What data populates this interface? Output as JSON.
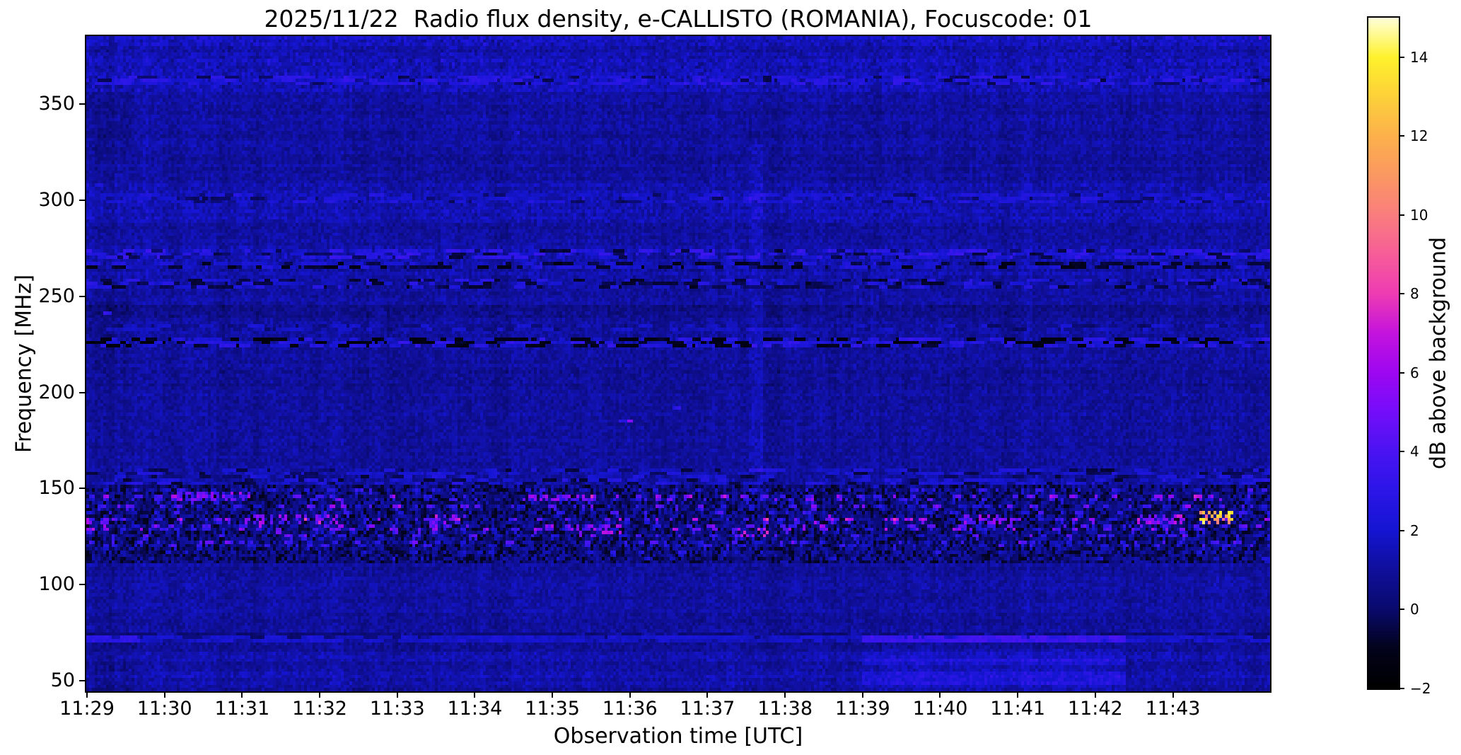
{
  "chart_data": {
    "type": "heatmap",
    "title": "2025/11/22  Radio flux density, e-CALLISTO (ROMANIA), Focuscode: 01",
    "xlabel": "Observation time [UTC]",
    "ylabel": "Frequency [MHz]",
    "x_ticks": [
      "11:29",
      "11:30",
      "11:31",
      "11:32",
      "11:33",
      "11:34",
      "11:35",
      "11:36",
      "11:37",
      "11:38",
      "11:39",
      "11:40",
      "11:41",
      "11:42",
      "11:43"
    ],
    "y_tick_labels": [
      "350",
      "300",
      "250",
      "200",
      "150",
      "100",
      "50"
    ],
    "y_tick_values": [
      350,
      300,
      250,
      200,
      150,
      100,
      50
    ],
    "freq_range_mhz": [
      44.5,
      385.4
    ],
    "time_start_utc": "11:29",
    "duration_min": 15.26,
    "grid": false,
    "colorbar": {
      "label": "dB above background",
      "tick_labels": [
        "14",
        "12",
        "10",
        "8",
        "6",
        "4",
        "2",
        "0",
        "−2"
      ],
      "tick_values": [
        14,
        12,
        10,
        8,
        6,
        4,
        2,
        0,
        -2
      ],
      "vmin": -2,
      "vmax": 15,
      "colormap": "gnuplot2",
      "stops": [
        [
          0.0,
          "000000"
        ],
        [
          0.06,
          "03031c"
        ],
        [
          0.118,
          "0a0a6e"
        ],
        [
          0.18,
          "10109e"
        ],
        [
          0.235,
          "1515d2"
        ],
        [
          0.3,
          "2e16e9"
        ],
        [
          0.353,
          "4a14f2"
        ],
        [
          0.42,
          "7a0dfa"
        ],
        [
          0.47,
          "9d07f1"
        ],
        [
          0.53,
          "c414dd"
        ],
        [
          0.588,
          "ee3cb4"
        ],
        [
          0.65,
          "f75f97"
        ],
        [
          0.706,
          "fa7e7e"
        ],
        [
          0.77,
          "fb9a60"
        ],
        [
          0.824,
          "fcb14c"
        ],
        [
          0.882,
          "fdd03a"
        ],
        [
          0.941,
          "fef22c"
        ],
        [
          1.0,
          "ffffd8"
        ]
      ]
    },
    "render_seed": 20251122,
    "background_level_db": 1.05,
    "features": [
      {
        "kind": "hglow",
        "f": [
          373,
          385.4
        ],
        "dv": 0.25,
        "noise": 0.55
      },
      {
        "kind": "hglow",
        "f": [
          382.5,
          385.4
        ],
        "dv": 0.45,
        "noise": 0.8
      },
      {
        "kind": "topdots",
        "f": [
          382,
          385.4
        ],
        "p": 0.012,
        "v": [
          4.5,
          9
        ]
      },
      {
        "kind": "hglow",
        "f": [
          358,
          373
        ],
        "dv": 0.5,
        "noise": 1.0
      },
      {
        "kind": "dashes",
        "f": [
          362,
          364.5
        ],
        "bright": {
          "p": 0.45,
          "v": 2.5,
          "s": 0.7
        },
        "dark": {
          "p": 0.12,
          "v": -0.2,
          "s": 0.3
        }
      },
      {
        "kind": "hglow",
        "f": [
          290,
          308
        ],
        "dv": 0.3,
        "noise": 0.6
      },
      {
        "kind": "dashes",
        "f": [
          301,
          303.2
        ],
        "bright": {
          "p": 0.35,
          "v": 2.2,
          "s": 0.5
        },
        "dark": {
          "p": 0.1,
          "v": 0,
          "s": 0.3
        }
      },
      {
        "kind": "hglow",
        "f": [
          263,
          277
        ],
        "dv": 0.2,
        "noise": 0.5
      },
      {
        "kind": "dashes",
        "f": [
          271.5,
          274.5
        ],
        "bright": {
          "p": 0.5,
          "v": 2.7,
          "s": 0.8
        },
        "dark": {
          "p": 0.15,
          "v": -0.3,
          "s": 0.4
        }
      },
      {
        "kind": "dashes",
        "f": [
          265.5,
          268
        ],
        "bright": {
          "p": 0.3,
          "v": 2.0,
          "s": 0.6
        },
        "dark": {
          "p": 0.3,
          "v": -0.8,
          "s": 0.5
        }
      },
      {
        "kind": "dashes",
        "f": [
          256,
          258.5
        ],
        "bright": {
          "p": 0.3,
          "v": 2.2,
          "s": 0.7
        },
        "dark": {
          "p": 0.25,
          "v": -0.5,
          "s": 0.4
        }
      },
      {
        "kind": "hglow",
        "f": [
          241,
          246
        ],
        "dv": -0.4,
        "noise": 0.4
      },
      {
        "kind": "dashes",
        "f": [
          233,
          235
        ],
        "bright": {
          "p": 0.25,
          "v": 1.8,
          "s": 0.4
        },
        "dark": {
          "p": 0.1,
          "v": 0.1,
          "s": 0.2
        }
      },
      {
        "kind": "dashes",
        "f": [
          226,
          228.5
        ],
        "bright": {
          "p": 0.4,
          "v": 2.4,
          "s": 0.8
        },
        "dark": {
          "p": 0.3,
          "v": -1.2,
          "s": 0.5
        }
      },
      {
        "kind": "hglow",
        "f": [
          204,
          212
        ],
        "dv": -0.2,
        "noise": 0.3
      },
      {
        "kind": "dashes",
        "f": [
          157.5,
          160
        ],
        "bright": {
          "p": 0.3,
          "v": 2.0,
          "s": 0.6
        },
        "dark": {
          "p": 0.15,
          "v": -0.3,
          "s": 0.4
        }
      },
      {
        "kind": "dashes",
        "f": [
          152.5,
          155.5
        ],
        "bright": {
          "p": 0.35,
          "v": 2.2,
          "s": 0.6
        },
        "dark": {
          "p": 0.15,
          "v": -0.4,
          "s": 0.4
        }
      },
      {
        "kind": "rfi",
        "f": [
          113,
          151.5
        ],
        "base": [
          -1.1,
          1.5
        ],
        "lines": [
          {
            "f": 150.5,
            "fw": 1.2,
            "p": 0.15,
            "v": [
              1.5,
              3.5
            ]
          },
          {
            "f": 147.0,
            "fw": 1.5,
            "p": 0.2,
            "v": [
              2.5,
              6.5
            ]
          },
          {
            "f": 144.5,
            "fw": 1.2,
            "p": 0.13,
            "v": [
              2,
              5
            ]
          },
          {
            "f": 141.0,
            "fw": 1.6,
            "p": 0.24,
            "v": [
              1.8,
              5.5
            ]
          },
          {
            "f": 138.0,
            "fw": 1.2,
            "p": 0.11,
            "v": [
              1.5,
              4
            ]
          },
          {
            "f": 134.8,
            "fw": 1.8,
            "p": 0.28,
            "v": [
              2.2,
              7
            ]
          },
          {
            "f": 131.5,
            "fw": 1.4,
            "p": 0.18,
            "v": [
              1.8,
              5.5
            ]
          },
          {
            "f": 129.0,
            "fw": 1.6,
            "p": 0.26,
            "v": [
              2,
              6
            ]
          },
          {
            "f": 126.0,
            "fw": 1.4,
            "p": 0.16,
            "v": [
              1.5,
              4.5
            ]
          },
          {
            "f": 123.5,
            "fw": 1.4,
            "p": 0.2,
            "v": [
              1.5,
              4.5
            ]
          },
          {
            "f": 120.5,
            "fw": 1.6,
            "p": 0.22,
            "v": [
              1.2,
              3.8
            ]
          },
          {
            "f": 117.5,
            "fw": 1.2,
            "p": 0.12,
            "v": [
              1,
              3
            ]
          },
          {
            "f": 114.5,
            "fw": 1.2,
            "p": 0.1,
            "v": [
              0.8,
              2.5
            ]
          }
        ],
        "clusters": [
          {
            "t": [
              14.35,
              14.75
            ],
            "f": [
              132.5,
              137.5
            ],
            "p": 0.55,
            "v": [
              8,
              14.5
            ]
          },
          {
            "t": [
              13.55,
              14.1
            ],
            "f": [
              133.5,
              136.5
            ],
            "p": 0.5,
            "v": [
              4,
              8
            ]
          },
          {
            "t": [
              1.1,
              2.1
            ],
            "f": [
              145.5,
              147.8
            ],
            "p": 0.5,
            "v": [
              3,
              6.5
            ]
          },
          {
            "t": [
              5.6,
              6.4
            ],
            "f": [
              145.8,
              147.5
            ],
            "p": 0.55,
            "v": [
              3,
              7
            ]
          },
          {
            "t": [
              2.0,
              3.2
            ],
            "f": [
              133.5,
              136.2
            ],
            "p": 0.45,
            "v": [
              3.5,
              7
            ]
          },
          {
            "t": [
              4.4,
              4.9
            ],
            "f": [
              133,
              137
            ],
            "p": 0.5,
            "v": [
              3.5,
              7.5
            ]
          },
          {
            "t": [
              6.3,
              6.9
            ],
            "f": [
              128,
              132
            ],
            "p": 0.4,
            "v": [
              3,
              7
            ]
          },
          {
            "t": [
              0.0,
              0.35
            ],
            "f": [
              133,
              135.5
            ],
            "p": 0.5,
            "v": [
              3,
              6.5
            ]
          },
          {
            "t": [
              8.4,
              8.75
            ],
            "f": [
              126,
              129
            ],
            "p": 0.5,
            "v": [
              4,
              8.5
            ]
          },
          {
            "t": [
              9.3,
              9.6
            ],
            "f": [
              133.5,
              136
            ],
            "p": 0.45,
            "v": [
              3.5,
              7
            ]
          },
          {
            "t": [
              11.3,
              11.9
            ],
            "f": [
              133.5,
              136.5
            ],
            "p": 0.45,
            "v": [
              3,
              6.5
            ]
          }
        ]
      },
      {
        "kind": "dashes",
        "f": [
          74,
          75.5
        ],
        "bright": {
          "p": 0,
          "v": 0,
          "s": 0
        },
        "dark": {
          "p": 0.75,
          "v": 0.15,
          "s": 0.25
        }
      },
      {
        "kind": "dashes",
        "f": [
          71.5,
          73.3
        ],
        "bright": {
          "p": 0.85,
          "v": 1.9,
          "s": 0.4
        },
        "dark": {
          "p": 0,
          "v": 0,
          "s": 0
        }
      },
      {
        "kind": "rect",
        "t": [
          0,
          0.65
        ],
        "f": [
          71.5,
          73.3
        ],
        "dv": 1.3,
        "noise": 0.3
      },
      {
        "kind": "rect",
        "t": [
          0,
          0.7
        ],
        "f": [
          44.5,
          71
        ],
        "dv": -0.3,
        "noise": 0.2
      },
      {
        "kind": "rect",
        "t": [
          0,
          0.55
        ],
        "f": [
          325,
          356
        ],
        "dv": -0.3,
        "noise": 0.2
      },
      {
        "kind": "rect",
        "t": [
          0,
          0.55
        ],
        "f": [
          213,
          247
        ],
        "dv": -0.25,
        "noise": 0.2
      },
      {
        "kind": "hrows",
        "f": [
          44.5,
          67
        ],
        "dv": 0.15,
        "amp": 0.5
      },
      {
        "kind": "rect",
        "t": [
          10.0,
          13.35
        ],
        "f": [
          71,
          74
        ],
        "dv": 1.5,
        "noise": 0.4
      },
      {
        "kind": "rect",
        "t": [
          10.0,
          13.35
        ],
        "f": [
          44.5,
          67
        ],
        "dv": 0.45,
        "noise": 0.3
      },
      {
        "kind": "rect",
        "t": [
          10.0,
          13.35
        ],
        "f": [
          59.5,
          61.5
        ],
        "dv": 0.7,
        "noise": 0.2
      },
      {
        "kind": "rect",
        "t": [
          10.0,
          13.35
        ],
        "f": [
          53.5,
          55
        ],
        "dv": 0.5,
        "noise": 0.2
      },
      {
        "kind": "rect",
        "t": [
          10.0,
          13.35
        ],
        "f": [
          49.5,
          50.8
        ],
        "dv": 0.7,
        "noise": 0.2
      },
      {
        "kind": "vstreak",
        "t": 8.62,
        "wt": 0.06,
        "f": [
          160,
          330
        ],
        "dv": 0.5
      },
      {
        "kind": "vstreak",
        "t": 10.15,
        "wt": 0.05,
        "f": [
          150,
          270
        ],
        "dv": 0.45
      },
      {
        "kind": "vstreak",
        "t": 3.05,
        "wt": 0.05,
        "f": [
          113,
          160
        ],
        "dv": 0.5
      },
      {
        "kind": "dot",
        "t": 0.25,
        "f": 242,
        "wt": 0.1,
        "wf": 2.5,
        "v": 3.3
      },
      {
        "kind": "dot",
        "t": 0.2,
        "f": 309,
        "wt": 0.09,
        "wf": 2,
        "v": 2.7
      },
      {
        "kind": "dot",
        "t": 6.95,
        "f": 185.5,
        "wt": 0.2,
        "wf": 1.2,
        "v": 3.0
      },
      {
        "kind": "dot",
        "t": 7.02,
        "f": 185.5,
        "wt": 0.07,
        "wf": 1.5,
        "v": 6.3
      },
      {
        "kind": "dot",
        "t": 7.6,
        "f": 193.5,
        "wt": 0.12,
        "wf": 1.3,
        "v": 2.8
      },
      {
        "kind": "dot",
        "t": 5.55,
        "f": 336,
        "wt": 0.06,
        "wf": 2.2,
        "v": 2.2
      }
    ]
  }
}
